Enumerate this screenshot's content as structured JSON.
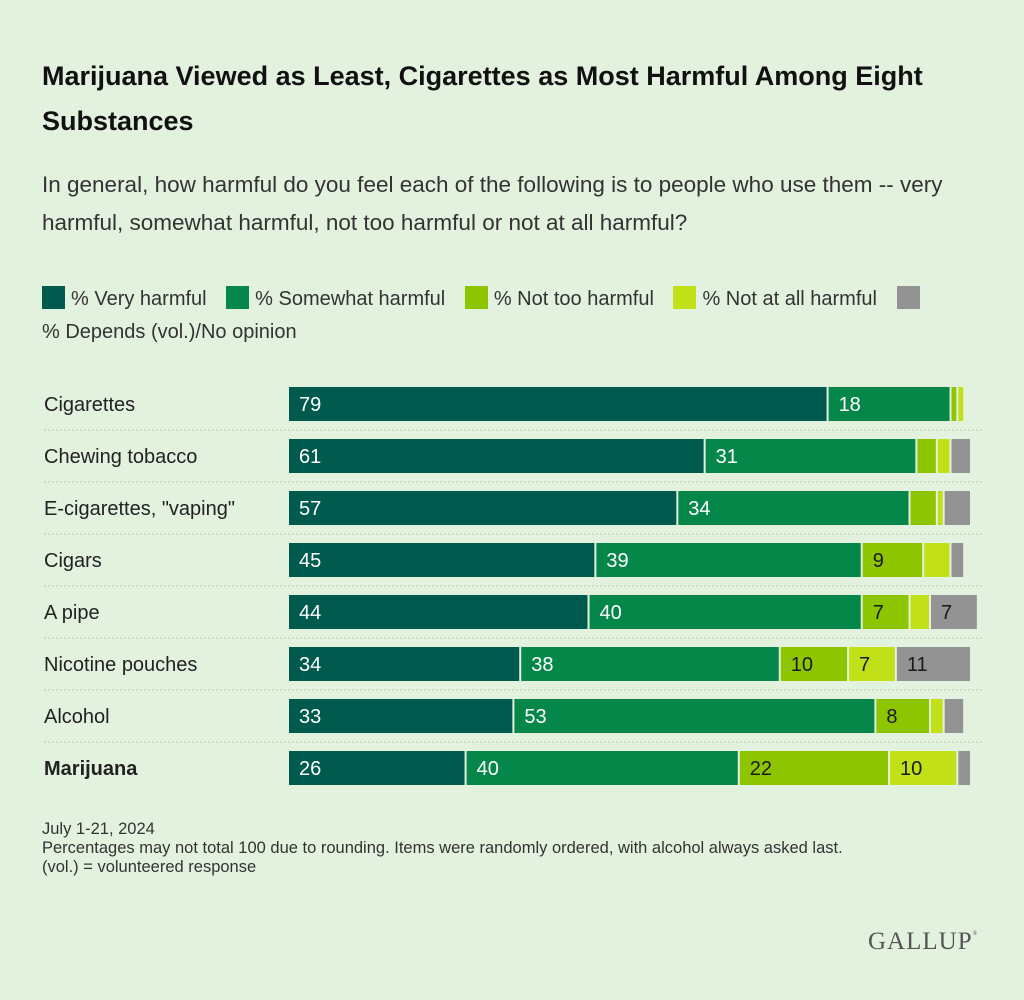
{
  "header": {
    "title": "Marijuana Viewed as Least, Cigarettes as Most Harmful Among Eight Substances",
    "subtitle": "In general, how harmful do you feel each of the following is to people who use them -- very harmful, somewhat harmful, not too harmful or not at all harmful?"
  },
  "colors": {
    "very_harmful": "#005a4e",
    "somewhat_harmful": "#05874a",
    "not_too_harmful": "#8dc500",
    "not_at_all_harmful": "#c1e017",
    "depends": "#939393",
    "background": "#e3f1df"
  },
  "chart_data": {
    "type": "bar",
    "orientation": "horizontal",
    "stacked": true,
    "title": "Marijuana Viewed as Least, Cigarettes as Most Harmful Among Eight Substances",
    "subtitle": "In general, how harmful do you feel each of the following is to people who use them -- very harmful, somewhat harmful, not too harmful or not at all harmful?",
    "categories": [
      "Cigarettes",
      "Chewing tobacco",
      "E-cigarettes, \"vaping\"",
      "Cigars",
      "A pipe",
      "Nicotine pouches",
      "Alcohol",
      "Marijuana"
    ],
    "bold_categories": [
      "Marijuana"
    ],
    "series": [
      {
        "name": "% Very harmful",
        "color": "#005a4e",
        "label_color": "#ffffff",
        "values": [
          79,
          61,
          57,
          45,
          44,
          34,
          33,
          26
        ],
        "labeled": [
          true,
          true,
          true,
          true,
          true,
          true,
          true,
          true
        ]
      },
      {
        "name": "% Somewhat harmful",
        "color": "#05874a",
        "label_color": "#ffffff",
        "values": [
          18,
          31,
          34,
          39,
          40,
          38,
          53,
          40
        ],
        "labeled": [
          true,
          true,
          true,
          true,
          true,
          true,
          true,
          true
        ]
      },
      {
        "name": "% Not too harmful",
        "color": "#8dc500",
        "label_color": "#1a1a1a",
        "values": [
          1,
          3,
          4,
          9,
          7,
          10,
          8,
          22
        ],
        "labeled": [
          false,
          false,
          false,
          true,
          true,
          true,
          true,
          true
        ]
      },
      {
        "name": "% Not at all harmful",
        "color": "#c1e017",
        "label_color": "#1a1a1a",
        "values": [
          1,
          2,
          1,
          4,
          3,
          7,
          2,
          10
        ],
        "labeled": [
          false,
          false,
          false,
          false,
          false,
          true,
          false,
          true
        ]
      },
      {
        "name": "% Depends (vol.)/No opinion",
        "color": "#939393",
        "label_color": "#1a1a1a",
        "values": [
          0,
          3,
          4,
          2,
          7,
          11,
          3,
          2
        ],
        "labeled": [
          false,
          false,
          false,
          false,
          true,
          true,
          false,
          false
        ]
      }
    ],
    "xlim": [
      0,
      100
    ],
    "grid": false,
    "legend_position": "top"
  },
  "legend": [
    {
      "label": "% Very harmful",
      "color": "#005a4e"
    },
    {
      "label": "% Somewhat harmful",
      "color": "#05874a"
    },
    {
      "label": "% Not too harmful",
      "color": "#8dc500"
    },
    {
      "label": "% Not at all harmful",
      "color": "#c1e017"
    },
    {
      "label": "% Depends (vol.)/No opinion",
      "color": "#939393"
    }
  ],
  "footer": {
    "date": "July 1-21, 2024",
    "note": "Percentages may not total 100 due to rounding. Items were randomly ordered, with alcohol always asked last.",
    "vol_note": "(vol.) = volunteered response"
  },
  "logo": "GALLUP"
}
